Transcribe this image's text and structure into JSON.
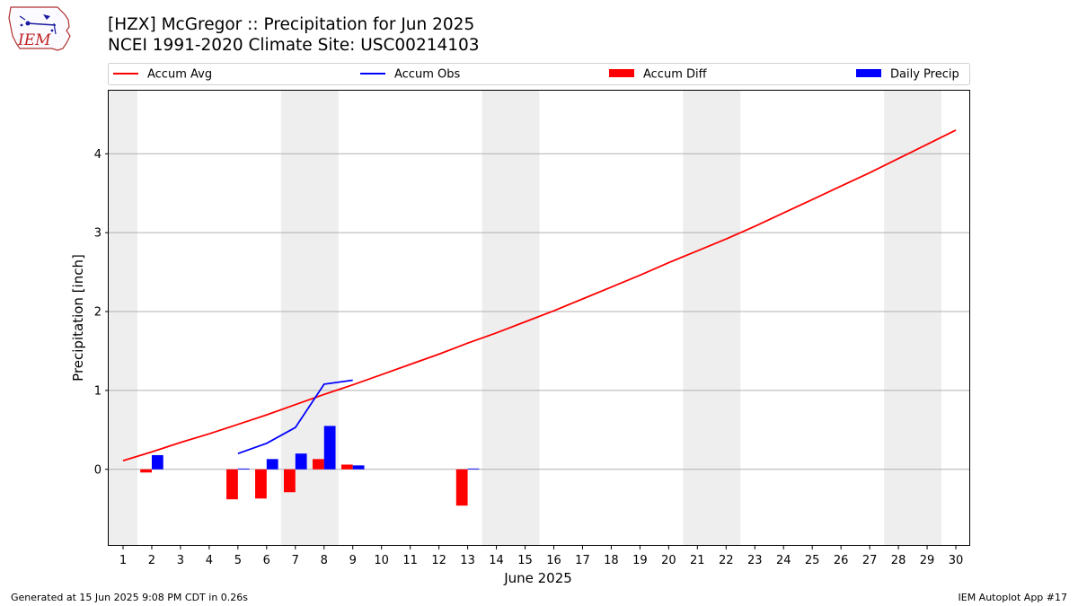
{
  "header": {
    "title_line1": "[HZX] McGregor :: Precipitation for Jun 2025",
    "title_line2": "NCEI 1991-2020 Climate Site: USC00214103"
  },
  "logo": {
    "text": "IEM",
    "icon": "iem-logo-icon"
  },
  "footer": {
    "generated": "Generated at 15 Jun 2025 9:08 PM CDT in 0.26s",
    "app": "IEM Autoplot App #17"
  },
  "colors": {
    "accum_avg": "#ff0000",
    "accum_obs": "#0000ff",
    "accum_diff": "#ff0000",
    "daily_precip": "#0000ff",
    "weekend_band": "#eeeeee",
    "grid": "#b0b0b0"
  },
  "chart_data": {
    "type": "bar",
    "xlabel": "June 2025",
    "ylabel": "Precipitation [inch]",
    "xlim": [
      0.5,
      30.5
    ],
    "ylim": [
      -0.97,
      4.8
    ],
    "x_ticks": [
      1,
      2,
      3,
      4,
      5,
      6,
      7,
      8,
      9,
      10,
      11,
      12,
      13,
      14,
      15,
      16,
      17,
      18,
      19,
      20,
      21,
      22,
      23,
      24,
      25,
      26,
      27,
      28,
      29,
      30
    ],
    "y_ticks": [
      0,
      1,
      2,
      3,
      4
    ],
    "grid": "horizontal",
    "legend_position": "top",
    "weekend_bands": [
      [
        0.5,
        1.5
      ],
      [
        6.5,
        8.5
      ],
      [
        13.5,
        15.5
      ],
      [
        20.5,
        22.5
      ],
      [
        27.5,
        29.5
      ]
    ],
    "series": [
      {
        "name": "Accum Avg",
        "kind": "line",
        "x": [
          1,
          2,
          3,
          4,
          5,
          6,
          7,
          8,
          9,
          10,
          11,
          12,
          13,
          14,
          15,
          16,
          17,
          18,
          19,
          20,
          21,
          22,
          23,
          24,
          25,
          26,
          27,
          28,
          29,
          30
        ],
        "values": [
          0.11,
          0.22,
          0.34,
          0.45,
          0.57,
          0.69,
          0.82,
          0.95,
          1.07,
          1.2,
          1.33,
          1.46,
          1.6,
          1.73,
          1.87,
          2.01,
          2.16,
          2.31,
          2.46,
          2.62,
          2.77,
          2.92,
          3.08,
          3.25,
          3.42,
          3.59,
          3.76,
          3.94,
          4.12,
          4.3
        ]
      },
      {
        "name": "Accum Obs",
        "kind": "line",
        "x": [
          5,
          6,
          7,
          8,
          9
        ],
        "values": [
          0.2,
          0.33,
          0.53,
          1.08,
          1.13
        ]
      },
      {
        "name": "Accum Diff",
        "kind": "bar",
        "offset": "left",
        "x": [
          2,
          5,
          6,
          7,
          8,
          9,
          13
        ],
        "values": [
          -0.04,
          -0.38,
          -0.37,
          -0.29,
          0.13,
          0.06,
          -0.46
        ]
      },
      {
        "name": "Daily Precip",
        "kind": "bar",
        "offset": "right",
        "x": [
          2,
          5,
          6,
          7,
          8,
          9,
          13
        ],
        "values": [
          0.18,
          0.01,
          0.13,
          0.2,
          0.55,
          0.05,
          0.01
        ]
      }
    ]
  }
}
